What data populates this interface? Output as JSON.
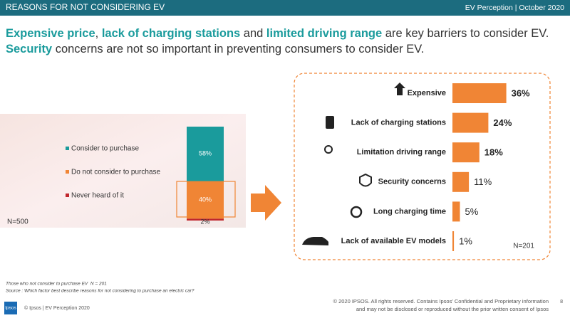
{
  "header": {
    "title": "REASONS FOR NOT CONSIDERING EV",
    "subtitle": "EV Perception | October 2020"
  },
  "headline": {
    "lines": [
      [
        {
          "text": "Expensive price",
          "highlight": true
        },
        {
          "text": ", ",
          "highlight": false
        },
        {
          "text": "lack of charging stations",
          "highlight": true
        },
        {
          "text": " and ",
          "highlight": false
        },
        {
          "text": "limited driving range",
          "highlight": true
        },
        {
          "text": " are key barriers to consider EV.",
          "highlight": false
        }
      ],
      [
        {
          "text": "Security",
          "highlight": true
        },
        {
          "text": " concerns are not so important in preventing consumers to consider EV.",
          "highlight": false
        }
      ]
    ]
  },
  "chart_data": [
    {
      "type": "stacked_bar",
      "series": [
        {
          "name": "Consider to purchase",
          "color": "#1a9b9c",
          "values": [
            58
          ],
          "value_labels": [
            "58%"
          ]
        },
        {
          "name": "Do not consider to purchase",
          "color": "#f08535",
          "values": [
            40
          ],
          "value_labels": [
            "40%"
          ]
        },
        {
          "name": "Never heard of it",
          "color": "#c0272d",
          "values": [
            2
          ],
          "value_labels": [
            "2%"
          ]
        }
      ],
      "annotation": "N=500"
    },
    {
      "type": "hbar",
      "categories": [
        "Expensive",
        "Lack of charging stations",
        "Limitation driving range",
        "Security concerns",
        "Long charging time",
        "Lack of available EV models"
      ],
      "values": [
        36,
        24,
        18,
        11,
        5,
        1
      ],
      "value_labels": [
        "36%",
        "24%",
        "18%",
        "11%",
        "5%",
        "1%"
      ],
      "color": "#f08535",
      "annotation": "N=201"
    }
  ],
  "footer": {
    "notes": [
      "Those who not consider to purchase EV  N = 201",
      "Source : Which factor best describe reasons for not considering to purchase an electric car?"
    ],
    "logo": "Ipsos",
    "left": "© Ipsos | EV Perception 2020",
    "copyright": [
      "© 2020 IPSOS. All rights reserved. Contains Ipsos' Confidential and Proprietary information",
      "and may not be disclosed or reproduced without the prior written consent of Ipsos"
    ],
    "page": "8"
  }
}
